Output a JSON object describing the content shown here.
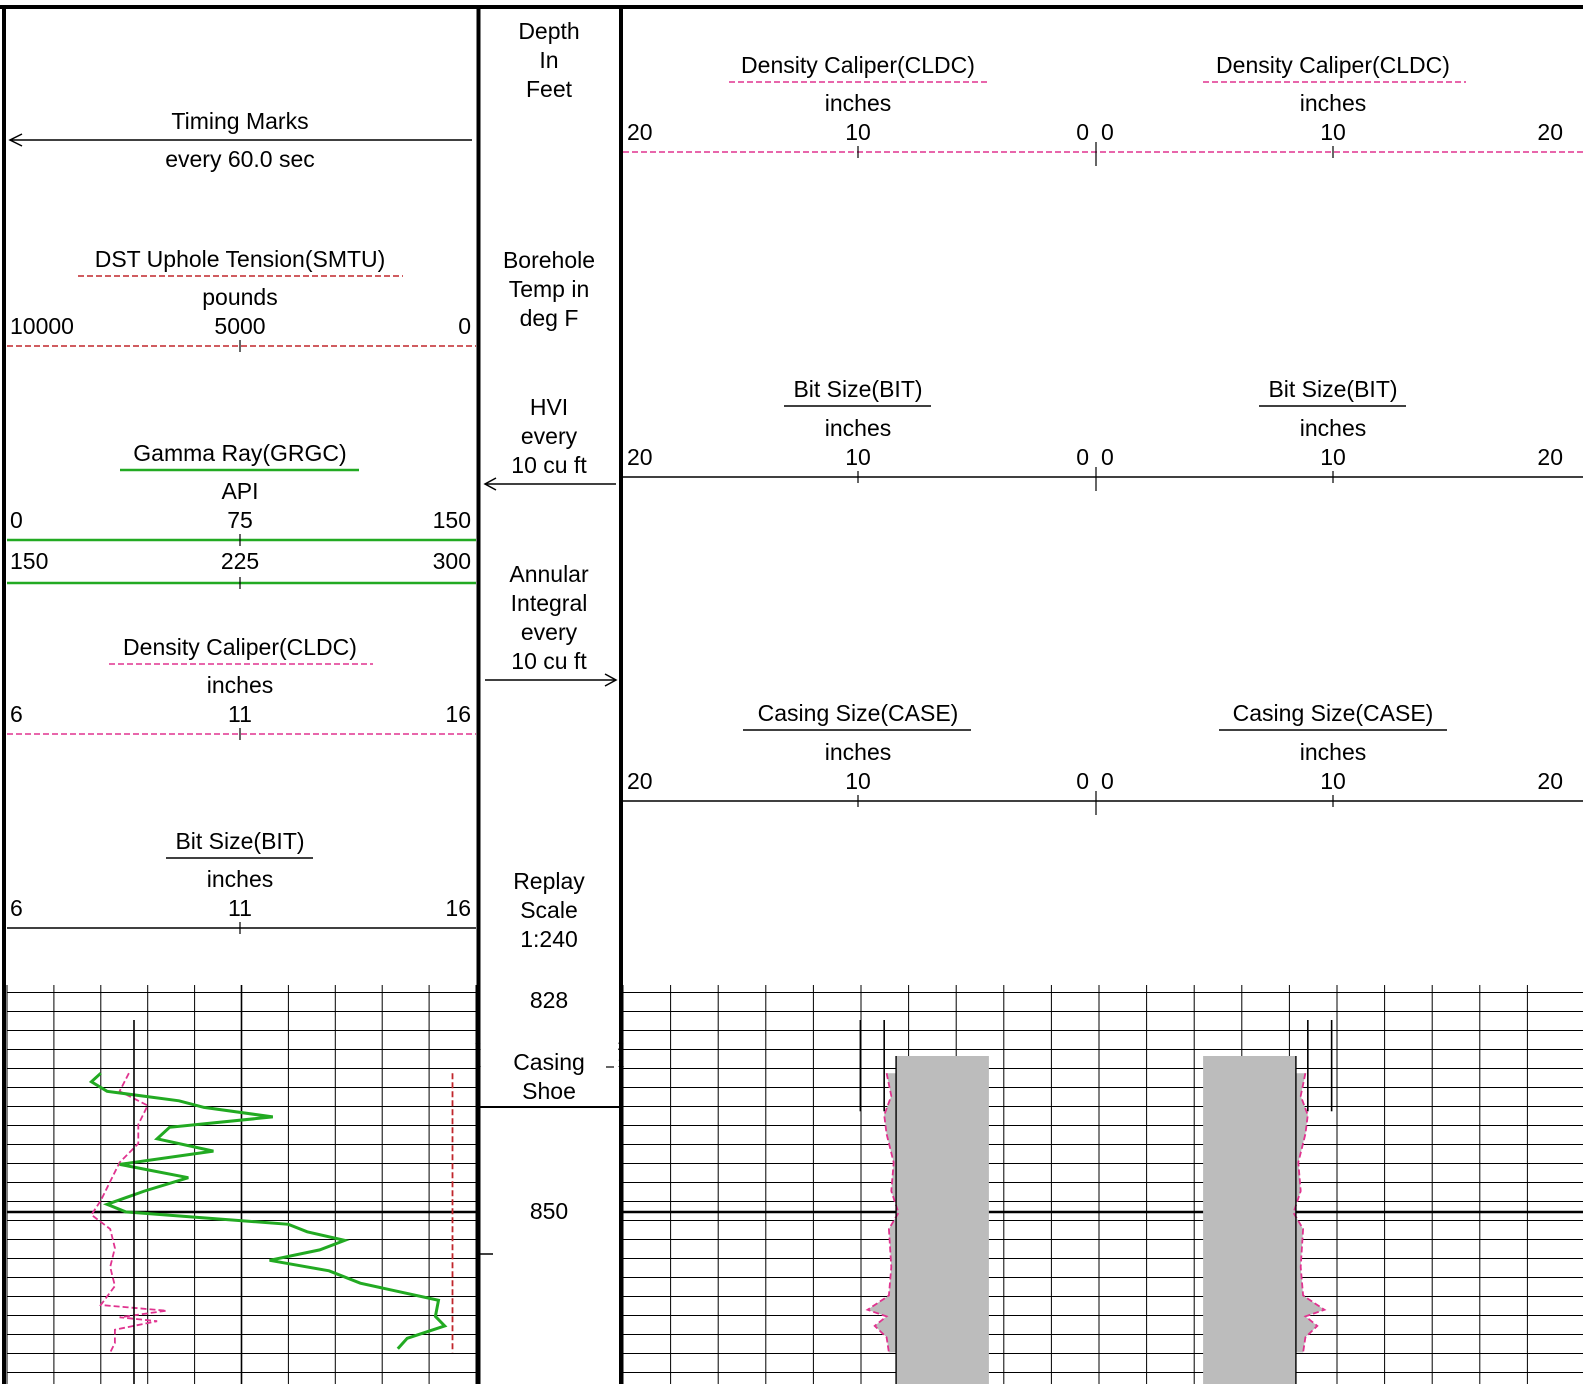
{
  "colors": {
    "gamma": "#22aa22",
    "caliper": "#e0338f",
    "tension": "#c0262c",
    "casing_fill": "#bcbcbc",
    "ink": "#000000"
  },
  "depth_track": {
    "header_lines": {
      "depth": [
        "Depth",
        "In",
        "Feet"
      ],
      "temp": [
        "Borehole",
        "Temp in",
        "deg F"
      ],
      "hvi": [
        "HVI",
        "every",
        "10 cu ft"
      ],
      "annular": [
        "Annular",
        "Integral",
        "every",
        "10 cu ft"
      ],
      "replay": [
        "Replay",
        "Scale",
        "1:240"
      ]
    },
    "depth_labels": [
      "828",
      "850"
    ],
    "casing_shoe": [
      "Casing",
      "Shoe"
    ],
    "small_marks": [
      "2",
      "1"
    ]
  },
  "left_headers": {
    "timing": {
      "title": "Timing Marks",
      "sub": "every 60.0 sec"
    },
    "tension": {
      "title": "DST Uphole Tension(SMTU)",
      "unit": "pounds",
      "ticks": [
        "10000",
        "5000",
        "0"
      ]
    },
    "gamma": {
      "title": "Gamma Ray(GRGC)",
      "unit": "API",
      "ticks": [
        "0",
        "75",
        "150"
      ],
      "ticks2": [
        "150",
        "225",
        "300"
      ]
    },
    "caliper": {
      "title": "Density Caliper(CLDC)",
      "unit": "inches",
      "ticks": [
        "6",
        "11",
        "16"
      ]
    },
    "bit": {
      "title": "Bit Size(BIT)",
      "unit": "inches",
      "ticks": [
        "6",
        "11",
        "16"
      ]
    }
  },
  "right_headers": {
    "caliper": {
      "title": "Density Caliper(CLDC)",
      "unit": "inches",
      "ticks": [
        "20",
        "10",
        "0",
        "0",
        "10",
        "20"
      ]
    },
    "bit": {
      "title": "Bit Size(BIT)",
      "unit": "inches",
      "ticks": [
        "20",
        "10",
        "0",
        "0",
        "10",
        "20"
      ]
    },
    "casing": {
      "title": "Casing Size(CASE)",
      "unit": "inches",
      "ticks": [
        "20",
        "10",
        "0",
        "0",
        "10",
        "20"
      ]
    }
  },
  "chart_data": {
    "type": "line",
    "depth_unit": "ft",
    "depth_range": [
      828,
      865
    ],
    "left_track": {
      "series": [
        {
          "name": "Gamma Ray(GRGC)",
          "unit": "API",
          "scale": [
            0,
            150
          ],
          "points": [
            [
              835.6,
              30
            ],
            [
              836.5,
              27
            ],
            [
              837.5,
              32
            ],
            [
              838.5,
              55
            ],
            [
              839.2,
              63
            ],
            [
              840.2,
              85
            ],
            [
              841.3,
              52
            ],
            [
              842.5,
              48
            ],
            [
              843.8,
              66
            ],
            [
              845.2,
              36
            ],
            [
              846.6,
              58
            ],
            [
              848,
              44
            ],
            [
              849.4,
              32
            ],
            [
              850.2,
              38
            ],
            [
              851.5,
              90
            ],
            [
              852.3,
              96
            ],
            [
              853.2,
              108
            ],
            [
              854.2,
              100
            ],
            [
              855.3,
              84
            ],
            [
              856.4,
              103
            ],
            [
              857.7,
              113
            ],
            [
              859.5,
              138
            ],
            [
              861.2,
              137
            ],
            [
              862.2,
              140
            ],
            [
              863.5,
              128
            ],
            [
              864.6,
              125
            ]
          ]
        },
        {
          "name": "Density Caliper(CLDC)",
          "unit": "inches",
          "scale": [
            6,
            16
          ],
          "points": [
            [
              835.6,
              8.6
            ],
            [
              837.5,
              8.4
            ],
            [
              839,
              9.0
            ],
            [
              841,
              8.8
            ],
            [
              843,
              8.8
            ],
            [
              845,
              8.4
            ],
            [
              847,
              8.2
            ],
            [
              849,
              8.0
            ],
            [
              850.5,
              7.8
            ],
            [
              852,
              8.2
            ],
            [
              854,
              8.3
            ],
            [
              856,
              8.2
            ],
            [
              858,
              8.3
            ],
            [
              860,
              8.0
            ],
            [
              860.6,
              9.4
            ],
            [
              861.3,
              8.4
            ],
            [
              861.7,
              9.2
            ],
            [
              862.6,
              8.3
            ],
            [
              864,
              8.3
            ],
            [
              865,
              8.2
            ]
          ]
        },
        {
          "name": "DST Uphole Tension(SMTU)",
          "unit": "pounds",
          "scale": [
            10000,
            0
          ],
          "points": [
            [
              835.6,
              500
            ],
            [
              865,
              500
            ]
          ]
        }
      ]
    },
    "right_track": {
      "scale_inches": [
        20,
        0,
        20
      ],
      "caliper_half_width_in": [
        [
          835.6,
          8.8
        ],
        [
          838,
          8.6
        ],
        [
          840,
          8.9
        ],
        [
          842,
          8.8
        ],
        [
          845,
          8.5
        ],
        [
          848,
          8.6
        ],
        [
          850.3,
          8.3
        ],
        [
          852,
          8.7
        ],
        [
          856,
          8.6
        ],
        [
          859,
          8.7
        ],
        [
          860.5,
          9.6
        ],
        [
          861.2,
          8.8
        ],
        [
          862.2,
          9.3
        ],
        [
          863.4,
          8.8
        ],
        [
          865,
          8.7
        ]
      ],
      "bit_size_in": [
        [
          828,
          9.9
        ],
        [
          839.4,
          9.9
        ]
      ],
      "casing_od_in": [
        [
          828,
          8.9
        ],
        [
          839.4,
          8.9
        ]
      ],
      "casing_fill_outer_in": 8.4,
      "casing_fill_inner_in": 4.5,
      "casing_shoe_depth": 837.4
    }
  }
}
